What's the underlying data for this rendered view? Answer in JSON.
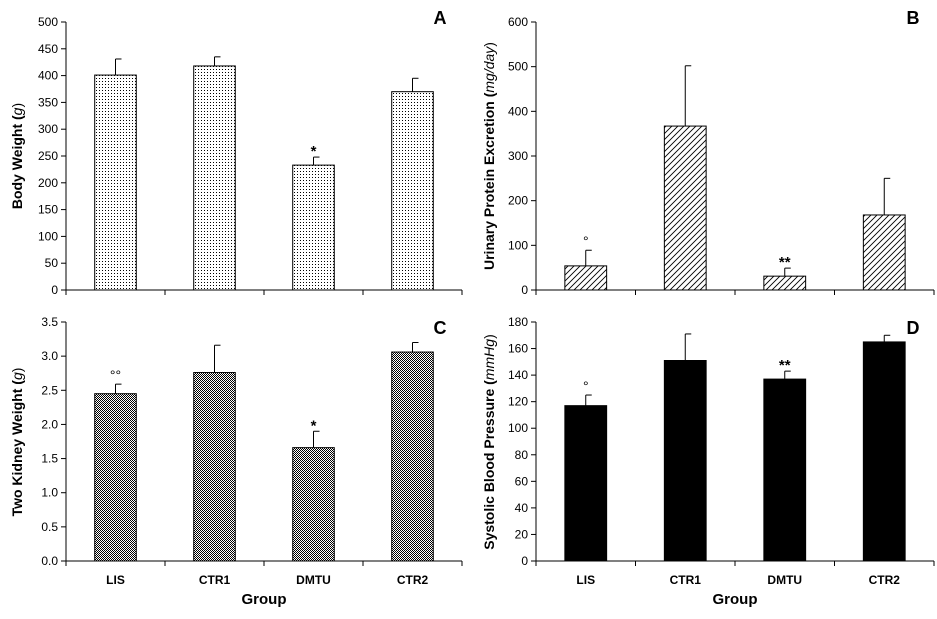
{
  "chart_data": [
    {
      "panel": "A",
      "type": "bar",
      "categories": [
        "LIS",
        "CTR1",
        "DMTU",
        "CTR2"
      ],
      "values": [
        401,
        418,
        233,
        370
      ],
      "errors": [
        30,
        17,
        15,
        25
      ],
      "significance": [
        "",
        "",
        "*",
        ""
      ],
      "ylabel_main": "Body Weight",
      "ylabel_unit": "g",
      "ylim": [
        0,
        500
      ],
      "yticks": [
        0,
        50,
        100,
        150,
        200,
        250,
        300,
        350,
        400,
        450,
        500
      ],
      "ytick_labels": [
        "0",
        "50",
        "100",
        "150",
        "200",
        "250",
        "300",
        "350",
        "400",
        "450",
        "500"
      ],
      "fill": "dots",
      "xlabel": "",
      "show_categories": false
    },
    {
      "panel": "B",
      "type": "bar",
      "categories": [
        "LIS",
        "CTR1",
        "DMTU",
        "CTR2"
      ],
      "values": [
        54,
        367,
        31,
        168
      ],
      "errors": [
        35,
        135,
        18,
        82
      ],
      "significance": [
        "°",
        "",
        "**",
        ""
      ],
      "ylabel_main": "Urinary Protein Excretion",
      "ylabel_unit": "mg/day",
      "ylim": [
        0,
        600
      ],
      "yticks": [
        0,
        100,
        200,
        300,
        400,
        500,
        600
      ],
      "ytick_labels": [
        "0",
        "100",
        "200",
        "300",
        "400",
        "500",
        "600"
      ],
      "fill": "hatch",
      "xlabel": "",
      "show_categories": false
    },
    {
      "panel": "C",
      "type": "bar",
      "categories": [
        "LIS",
        "CTR1",
        "DMTU",
        "CTR2"
      ],
      "values": [
        2.45,
        2.76,
        1.66,
        3.06
      ],
      "errors": [
        0.14,
        0.4,
        0.24,
        0.14
      ],
      "significance": [
        "°°",
        "",
        "*",
        ""
      ],
      "ylabel_main": "Two Kidney Weight",
      "ylabel_unit": "g",
      "ylim": [
        0,
        3.5
      ],
      "yticks": [
        0,
        0.5,
        1.0,
        1.5,
        2.0,
        2.5,
        3.0,
        3.5
      ],
      "ytick_labels": [
        "0.0",
        "0.5",
        "1.0",
        "1.5",
        "2.0",
        "2.5",
        "3.0",
        "3.5"
      ],
      "fill": "checker",
      "xlabel": "Group",
      "show_categories": true
    },
    {
      "panel": "D",
      "type": "bar",
      "categories": [
        "LIS",
        "CTR1",
        "DMTU",
        "CTR2"
      ],
      "values": [
        117,
        151,
        137,
        165
      ],
      "errors": [
        8,
        20,
        6,
        5
      ],
      "significance": [
        "°",
        "",
        "**",
        ""
      ],
      "ylabel_main": "Systolic Blood Pressure",
      "ylabel_unit": "mmHg",
      "ylim": [
        0,
        180
      ],
      "yticks": [
        0,
        20,
        40,
        60,
        80,
        100,
        120,
        140,
        160,
        180
      ],
      "ytick_labels": [
        "0",
        "20",
        "40",
        "60",
        "80",
        "100",
        "120",
        "140",
        "160",
        "180"
      ],
      "fill": "solid",
      "xlabel": "Group",
      "show_categories": true
    }
  ]
}
